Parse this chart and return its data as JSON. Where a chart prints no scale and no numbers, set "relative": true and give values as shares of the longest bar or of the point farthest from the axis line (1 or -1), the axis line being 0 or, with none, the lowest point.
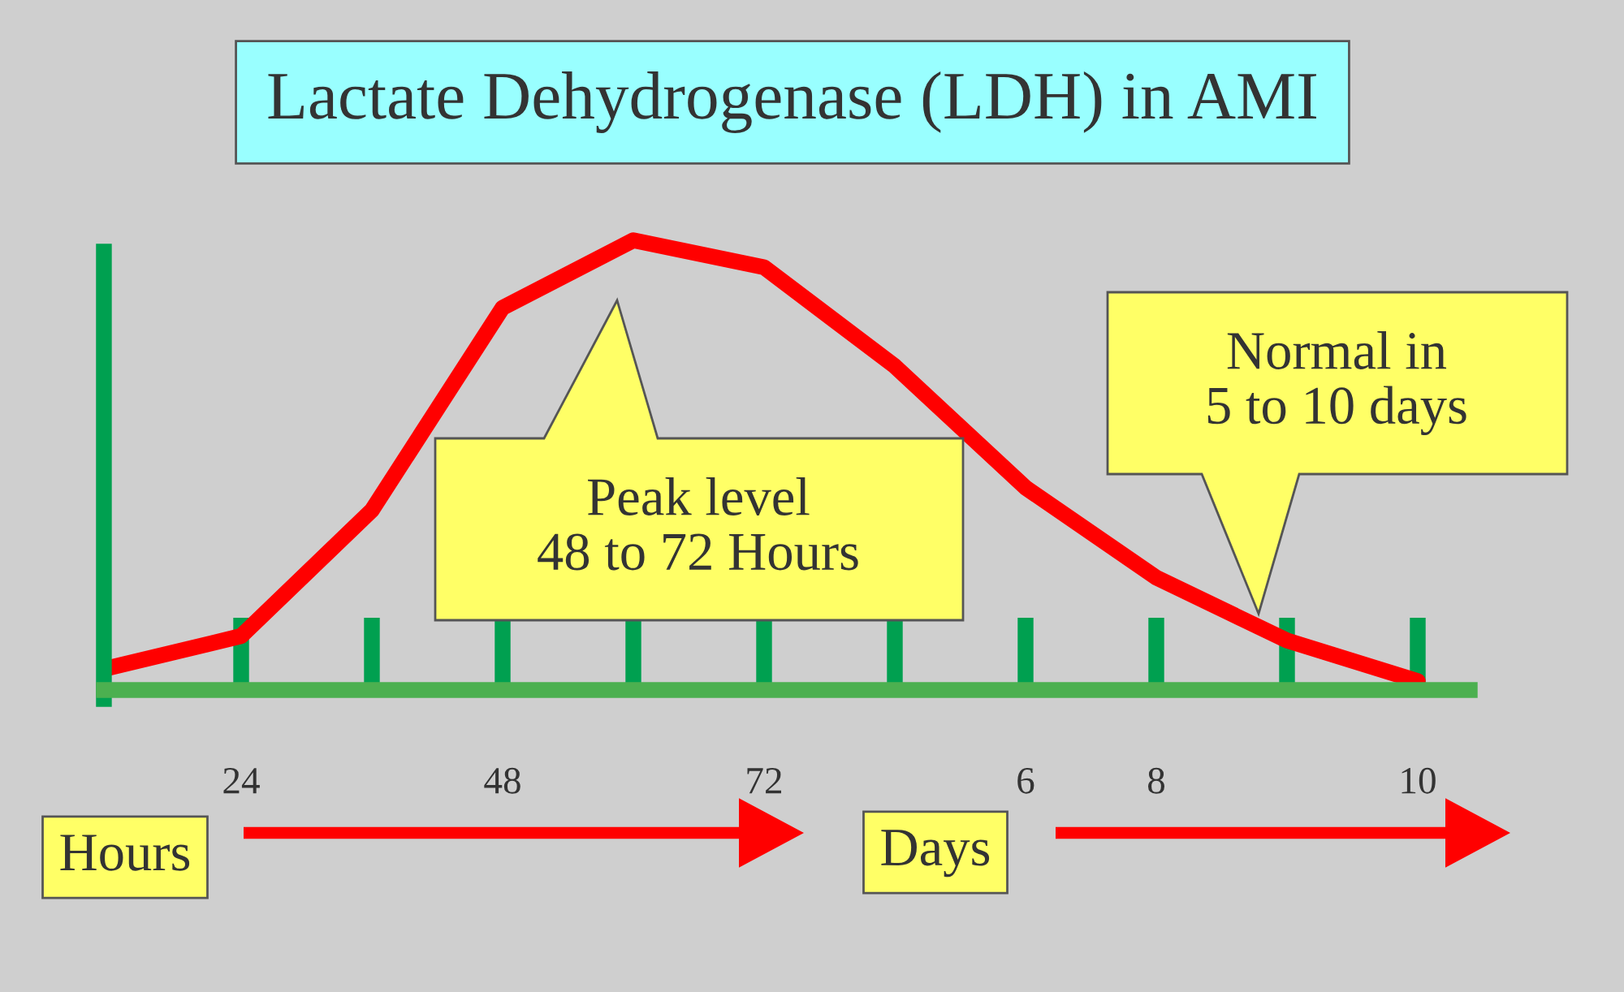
{
  "chart_data": {
    "type": "line",
    "title": "Lactate Dehydrogenase (LDH) in AMI",
    "relative": true,
    "categories": [
      null,
      "24",
      null,
      "48",
      null,
      "72",
      null,
      "6",
      "8",
      null,
      "10"
    ],
    "series": [
      {
        "color": "#ff0000",
        "values": [
          0.05,
          0.12,
          0.4,
          0.85,
          1,
          0.94,
          0.72,
          0.45,
          0.25,
          0.11,
          0.02
        ]
      }
    ],
    "marker": "none",
    "line_style": "solid",
    "grid": false,
    "legend": false,
    "annotations": [
      "Peak level\n48 to 72 Hours",
      "Normal in\n5 to 10 days",
      "Hours",
      "Days"
    ]
  }
}
